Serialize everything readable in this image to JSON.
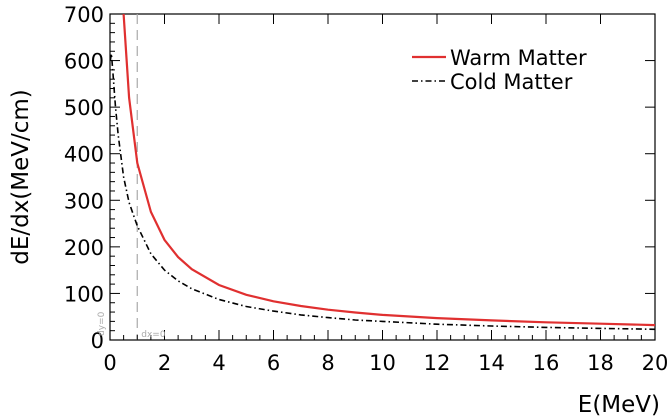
{
  "chart_data": {
    "type": "line",
    "xlabel": "E(MeV)",
    "ylabel": "dE/dx(MeV/cm)",
    "xlim": [
      0,
      20
    ],
    "ylim": [
      0,
      700
    ],
    "xticks": [
      0,
      2,
      4,
      6,
      8,
      10,
      12,
      14,
      16,
      18,
      20
    ],
    "yticks": [
      0,
      100,
      200,
      300,
      400,
      500,
      600,
      700
    ],
    "grid": false,
    "legend_position": "top-right",
    "annotations": [
      {
        "text": "dx=0",
        "near_x": 1.0,
        "color": "#aaaaaa"
      },
      {
        "text": "dy=0",
        "near_y": 0,
        "color": "#aaaaaa"
      }
    ],
    "reference_line": {
      "x": 1.0,
      "style": "dashed",
      "color": "#aaaaaa"
    },
    "series": [
      {
        "name": "Warm Matter",
        "color": "#e03030",
        "style": "solid",
        "x": [
          0.5,
          0.7,
          1,
          1.5,
          2,
          2.5,
          3,
          4,
          5,
          6,
          7,
          8,
          9,
          10,
          12,
          14,
          16,
          18,
          20
        ],
        "y": [
          700,
          520,
          380,
          275,
          215,
          178,
          152,
          118,
          97,
          83,
          73,
          65,
          59,
          54,
          47,
          42,
          38,
          35,
          32
        ]
      },
      {
        "name": "Cold Matter",
        "color": "#000000",
        "style": "dashdot",
        "x": [
          0.01,
          0.05,
          0.1,
          0.2,
          0.3,
          0.5,
          0.7,
          1,
          1.5,
          2,
          2.5,
          3,
          4,
          5,
          6,
          7,
          8,
          9,
          10,
          12,
          14,
          16,
          18,
          20
        ],
        "y": [
          600,
          615,
          580,
          500,
          440,
          350,
          295,
          245,
          185,
          150,
          127,
          110,
          87,
          72,
          62,
          54,
          48,
          43,
          40,
          34,
          30,
          27,
          25,
          23
        ]
      }
    ]
  }
}
